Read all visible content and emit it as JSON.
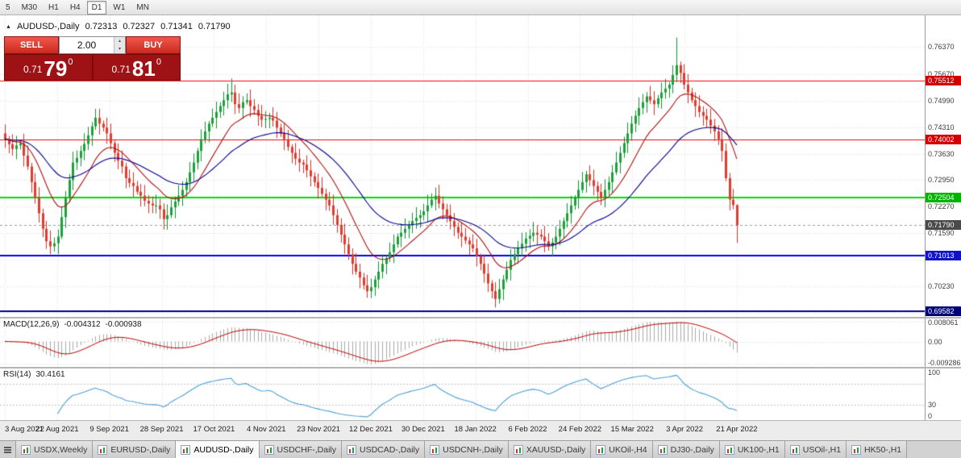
{
  "toolbar": {
    "timeframes": [
      {
        "label": "5",
        "active": false
      },
      {
        "label": "M30",
        "active": false
      },
      {
        "label": "H1",
        "active": false
      },
      {
        "label": "H4",
        "active": false
      },
      {
        "label": "D1",
        "active": true
      },
      {
        "label": "W1",
        "active": false
      },
      {
        "label": "MN",
        "active": false
      }
    ]
  },
  "symbol_info": {
    "collapse_icon": "▲",
    "title": "AUDUSD-,Daily",
    "open": "0.72313",
    "high": "0.72327",
    "low": "0.71341",
    "close": "0.71790"
  },
  "trade_widget": {
    "sell_label": "SELL",
    "buy_label": "BUY",
    "volume": "2.00",
    "sell": {
      "prefix": "0.71",
      "big": "79",
      "sup": "0"
    },
    "buy": {
      "prefix": "0.71",
      "big": "81",
      "sup": "0"
    }
  },
  "price_scale": {
    "labels": [
      {
        "text": "0.76370",
        "value": 0.7637
      },
      {
        "text": "0.75670",
        "value": 0.7567
      },
      {
        "text": "0.74990",
        "value": 0.7499
      },
      {
        "text": "0.74310",
        "value": 0.7431
      },
      {
        "text": "0.73630",
        "value": 0.7363
      },
      {
        "text": "0.72950",
        "value": 0.7295
      },
      {
        "text": "0.72270",
        "value": 0.7227
      },
      {
        "text": "0.71590",
        "value": 0.7159
      },
      {
        "text": "0.70230",
        "value": 0.7023
      }
    ],
    "badges": [
      {
        "text": "0.75512",
        "value": 0.75512,
        "color": "#d40000"
      },
      {
        "text": "0.74002",
        "value": 0.74002,
        "color": "#d40000"
      },
      {
        "text": "0.72504",
        "value": 0.72504,
        "color": "#00b400"
      },
      {
        "text": "0.71790",
        "value": 0.7179,
        "color": "#4a4a4a"
      },
      {
        "text": "0.71013",
        "value": 0.71013,
        "color": "#1212c8"
      },
      {
        "text": "0.69582",
        "value": 0.69582,
        "color": "#000078"
      }
    ]
  },
  "chart_data": {
    "type": "candlestick",
    "symbol": "AUDUSD-",
    "timeframe": "Daily",
    "title": "AUDUSD-,Daily",
    "x_labels": [
      "3 Aug 2021",
      "22 Aug 2021",
      "9 Sep 2021",
      "28 Sep 2021",
      "17 Oct 2021",
      "4 Nov 2021",
      "23 Nov 2021",
      "12 Dec 2021",
      "30 Dec 2021",
      "18 Jan 2022",
      "6 Feb 2022",
      "24 Feb 2022",
      "15 Mar 2022",
      "3 Apr 2022",
      "21 Apr 2022"
    ],
    "y_range": [
      0.6944,
      0.7718
    ],
    "up_color": "#1ba03a",
    "down_color": "#e23b2e",
    "wick_up": "#0f8f30",
    "wick_down": "#d93025",
    "grid_color": "#dcdcdc",
    "closes": [
      0.74,
      0.7387,
      0.7375,
      0.7384,
      0.739,
      0.7358,
      0.733,
      0.729,
      0.725,
      0.721,
      0.717,
      0.7138,
      0.7125,
      0.7133,
      0.715,
      0.72,
      0.725,
      0.7295,
      0.734,
      0.7352,
      0.737,
      0.7388,
      0.741,
      0.7433,
      0.7455,
      0.744,
      0.743,
      0.7415,
      0.739,
      0.7365,
      0.7345,
      0.733,
      0.73,
      0.7288,
      0.728,
      0.7265,
      0.7255,
      0.7242,
      0.7235,
      0.723,
      0.723,
      0.722,
      0.7195,
      0.7205,
      0.7225,
      0.724,
      0.7255,
      0.727,
      0.729,
      0.7315,
      0.734,
      0.737,
      0.74,
      0.742,
      0.744,
      0.7455,
      0.747,
      0.7485,
      0.75,
      0.7515,
      0.752,
      0.749,
      0.748,
      0.7495,
      0.75,
      0.7485,
      0.7475,
      0.746,
      0.745,
      0.7452,
      0.7455,
      0.7448,
      0.743,
      0.7415,
      0.74,
      0.738,
      0.7365,
      0.735,
      0.734,
      0.7335,
      0.732,
      0.7305,
      0.729,
      0.7275,
      0.726,
      0.7245,
      0.723,
      0.7205,
      0.718,
      0.7155,
      0.713,
      0.7105,
      0.708,
      0.706,
      0.7045,
      0.7025,
      0.701,
      0.702,
      0.704,
      0.706,
      0.708,
      0.7095,
      0.711,
      0.713,
      0.715,
      0.716,
      0.717,
      0.718,
      0.719,
      0.7198,
      0.7205,
      0.7215,
      0.723,
      0.7245,
      0.7255,
      0.7235,
      0.722,
      0.7205,
      0.719,
      0.7175,
      0.716,
      0.715,
      0.714,
      0.713,
      0.712,
      0.71,
      0.708,
      0.7055,
      0.703,
      0.701,
      0.699,
      0.7015,
      0.704,
      0.7065,
      0.709,
      0.7105,
      0.712,
      0.7132,
      0.7145,
      0.7152,
      0.716,
      0.7155,
      0.715,
      0.7138,
      0.7125,
      0.7135,
      0.715,
      0.717,
      0.719,
      0.721,
      0.723,
      0.725,
      0.727,
      0.729,
      0.731,
      0.7295,
      0.728,
      0.7265,
      0.725,
      0.727,
      0.729,
      0.7315,
      0.734,
      0.7365,
      0.739,
      0.7415,
      0.744,
      0.746,
      0.748,
      0.7495,
      0.751,
      0.75,
      0.749,
      0.7505,
      0.752,
      0.753,
      0.754,
      0.7565,
      0.759,
      0.757,
      0.754,
      0.752,
      0.75,
      0.7485,
      0.747,
      0.746,
      0.745,
      0.7435,
      0.742,
      0.74,
      0.737,
      0.73,
      0.7245,
      0.7231,
      0.7179
    ],
    "extremes": [
      {
        "i": 12,
        "low": 0.7105
      },
      {
        "i": 24,
        "high": 0.7478
      },
      {
        "i": 42,
        "low": 0.7168
      },
      {
        "i": 60,
        "high": 0.7556
      },
      {
        "i": 96,
        "low": 0.6993
      },
      {
        "i": 114,
        "high": 0.7276
      },
      {
        "i": 130,
        "low": 0.6968
      },
      {
        "i": 178,
        "high": 0.7661
      },
      {
        "i": 194,
        "high": 0.72327,
        "low": 0.71341
      }
    ],
    "hlines": [
      {
        "value": 0.75512,
        "color": "#ff0000",
        "width": 1
      },
      {
        "value": 0.74002,
        "color": "#ff0000",
        "width": 1
      },
      {
        "value": 0.72504,
        "color": "#00dd00",
        "width": 2
      },
      {
        "value": 0.71013,
        "color": "#0000ee",
        "width": 2
      },
      {
        "value": 0.69582,
        "color": "#000080",
        "width": 2
      },
      {
        "value": 0.7179,
        "color": "#9a9a9a",
        "width": 1,
        "dash": true
      }
    ],
    "extra_grid": [
      0.7091,
      0.6955
    ],
    "ma": [
      {
        "period": 13,
        "color": "#b01010"
      },
      {
        "period": 34,
        "color": "#000090"
      }
    ],
    "macd": {
      "name": "MACD(12,26,9)",
      "main_value": "-0.004312",
      "signal_value": "-0.000938",
      "fast": 12,
      "slow": 26,
      "signal": 9,
      "range": [
        -0.0105,
        0.0095
      ],
      "hist_color": "#a9a9a9",
      "signal_color": "#c00000",
      "scale_labels": [
        {
          "text": "0.008061",
          "value": 0.008061
        },
        {
          "text": "0.00",
          "value": 0
        },
        {
          "text": "-0.009286",
          "value": -0.009286
        }
      ]
    },
    "rsi": {
      "name": "RSI(14)",
      "value_text": "30.4161",
      "period": 14,
      "levels": [
        70,
        30
      ],
      "color": "#4aa0d8",
      "range": [
        0,
        100
      ],
      "scale_labels": [
        {
          "text": "100",
          "value": 100
        },
        {
          "text": "30",
          "value": 30
        },
        {
          "text": "0",
          "value": 0
        }
      ]
    }
  },
  "tabs": {
    "items": [
      {
        "label": "USDX,Weekly",
        "active": false
      },
      {
        "label": "EURUSD-,Daily",
        "active": false
      },
      {
        "label": "AUDUSD-,Daily",
        "active": true
      },
      {
        "label": "USDCHF-,Daily",
        "active": false
      },
      {
        "label": "USDCAD-,Daily",
        "active": false
      },
      {
        "label": "USDCNH-,Daily",
        "active": false
      },
      {
        "label": "XAUUSD-,Daily",
        "active": false
      },
      {
        "label": "UKOil-,H4",
        "active": false
      },
      {
        "label": "DJ30-,Daily",
        "active": false
      },
      {
        "label": "UK100-,H1",
        "active": false
      },
      {
        "label": "USOil-,H1",
        "active": false
      },
      {
        "label": "HK50-,H1",
        "active": false
      }
    ]
  }
}
